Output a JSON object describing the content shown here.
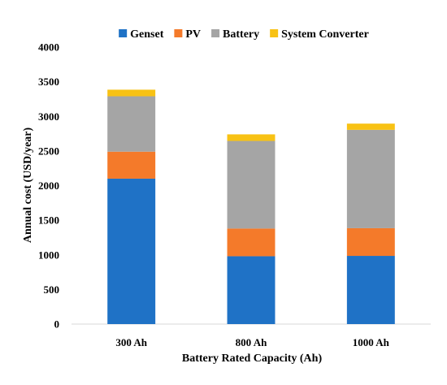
{
  "chart_data": {
    "type": "bar",
    "stacked": true,
    "categories": [
      "300 Ah",
      "800 Ah",
      "1000 Ah"
    ],
    "series": [
      {
        "name": "Genset",
        "color": "#1f72c6",
        "values": [
          2100,
          980,
          985
        ]
      },
      {
        "name": "PV",
        "color": "#f47a2a",
        "values": [
          390,
          400,
          400
        ]
      },
      {
        "name": "Battery",
        "color": "#a5a5a5",
        "values": [
          800,
          1265,
          1420
        ]
      },
      {
        "name": "System Converter",
        "color": "#f8c214",
        "values": [
          95,
          95,
          90
        ]
      }
    ],
    "xlabel": "Battery Rated Capacity (Ah)",
    "ylabel": "Annual cost (USD/year)",
    "ylim": [
      0,
      4000
    ],
    "yticks": [
      0,
      500,
      1000,
      1500,
      2000,
      2500,
      3000,
      3500,
      4000
    ],
    "grid": false,
    "legend_position": "top"
  }
}
